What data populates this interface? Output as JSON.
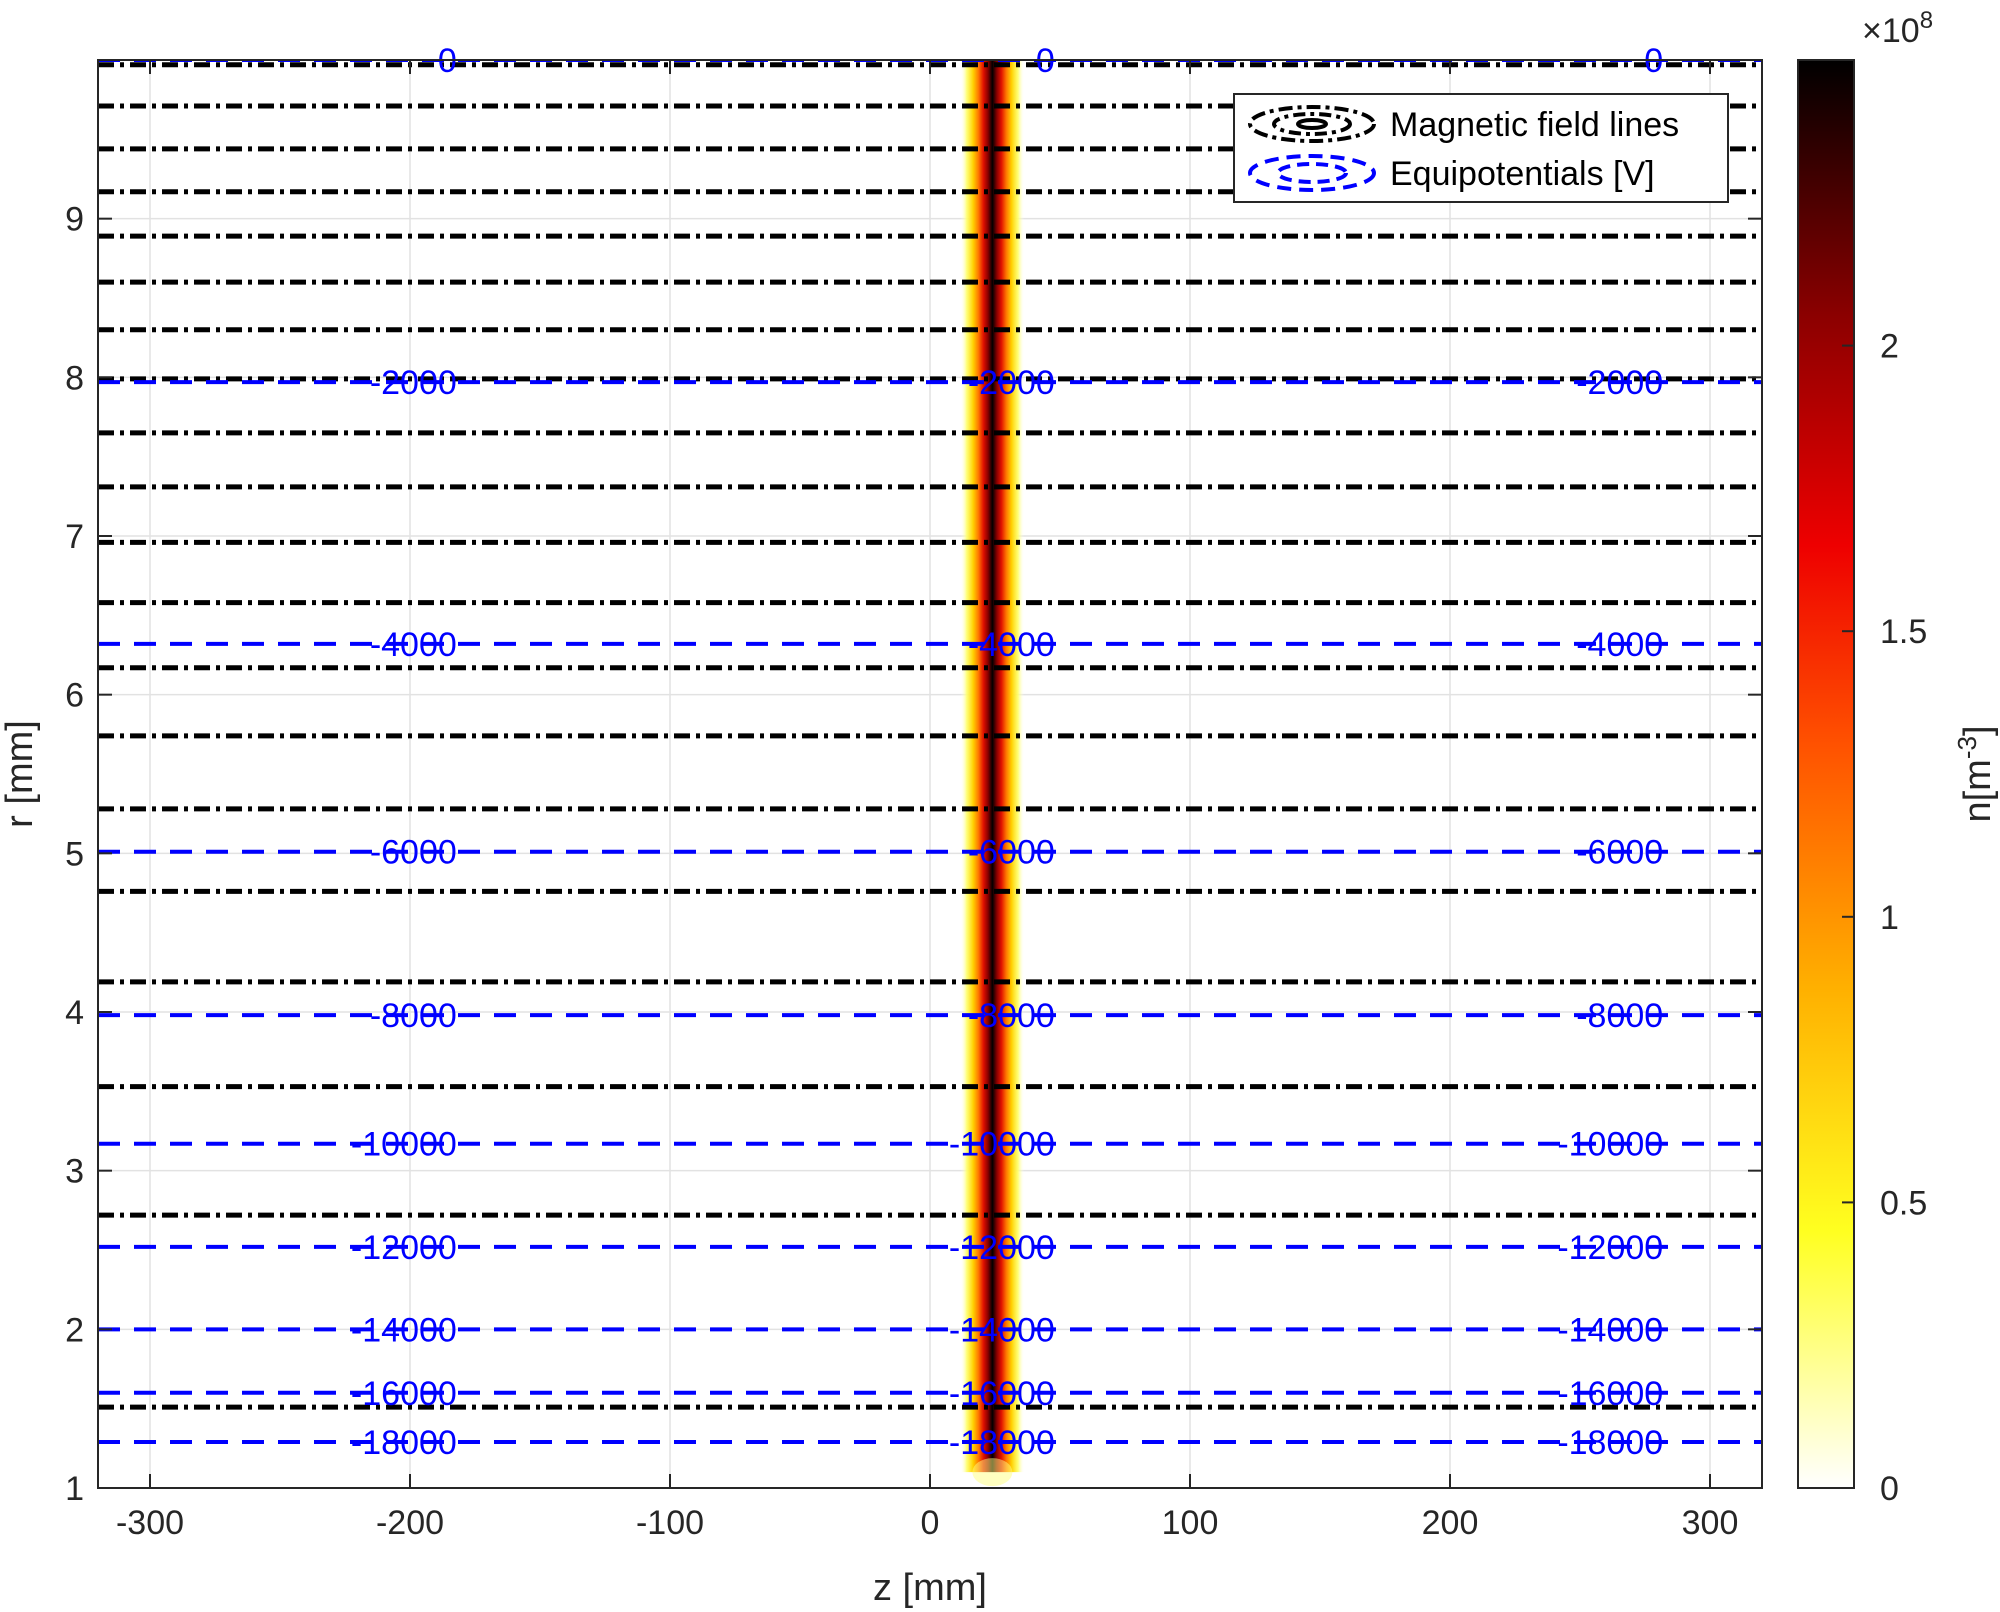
{
  "chart_data": {
    "type": "heatmap",
    "xlabel": "z [mm]",
    "ylabel": "r [mm]",
    "xlim": [
      -320,
      320
    ],
    "ylim": [
      1,
      10
    ],
    "xticks": [
      -300,
      -200,
      -100,
      0,
      100,
      200,
      300
    ],
    "yticks": [
      1,
      2,
      3,
      4,
      5,
      6,
      7,
      8,
      9
    ],
    "grid": true,
    "colormap": "hot (reversed)",
    "colorbar": {
      "label": "n[m",
      "label_sup": "-3",
      "label_end": "]",
      "multiplier": "×10",
      "multiplier_exp": "8",
      "ticks": [
        0,
        0.5,
        1,
        1.5,
        2
      ],
      "range": [
        0,
        2.5
      ]
    },
    "density_beam": {
      "z_center": 24,
      "r_range": [
        1.1,
        10
      ],
      "peak": 2.5
    },
    "magnetic_field_lines": {
      "name": "Magnetic field lines",
      "color": "#000000",
      "r_values": [
        9.97,
        9.71,
        9.44,
        9.17,
        8.89,
        8.6,
        8.3,
        7.99,
        7.65,
        7.31,
        6.96,
        6.58,
        6.17,
        5.74,
        5.28,
        4.76,
        4.19,
        3.53,
        2.72,
        1.51
      ]
    },
    "equipotentials": {
      "name": "Equipotentials [V]",
      "color": "#0000ff",
      "lines": [
        {
          "r": 10.0,
          "label": "0"
        },
        {
          "r": 7.97,
          "label": "-2000"
        },
        {
          "r": 6.32,
          "label": "-4000"
        },
        {
          "r": 5.01,
          "label": "-6000"
        },
        {
          "r": 3.98,
          "label": "-8000"
        },
        {
          "r": 3.17,
          "label": "-10000"
        },
        {
          "r": 2.52,
          "label": "-12000"
        },
        {
          "r": 2.0,
          "label": "-14000"
        },
        {
          "r": 1.6,
          "label": "-16000"
        },
        {
          "r": 1.29,
          "label": "-18000"
        }
      ],
      "label_z": [
        -182,
        48,
        282
      ]
    },
    "legend": {
      "placement": "top-right",
      "entries": [
        "Magnetic field lines",
        "Equipotentials [V]"
      ]
    }
  }
}
